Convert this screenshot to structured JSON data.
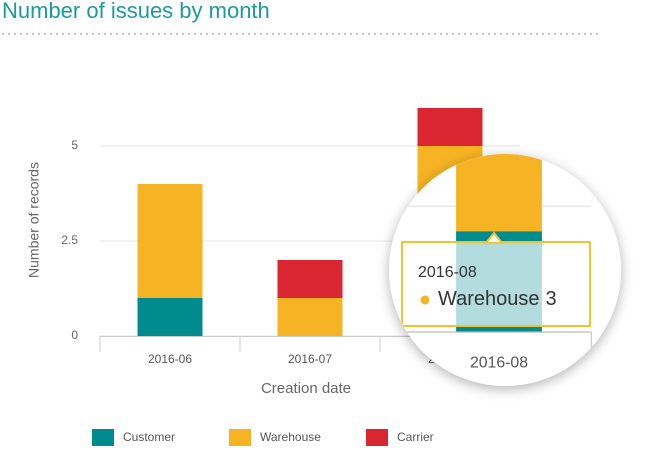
{
  "chart_data": {
    "type": "stacked-bar",
    "title": "Number of issues by month",
    "x_label": "Creation date",
    "y_label": "Number of records",
    "categories": [
      "2016-06",
      "2016-07",
      "2016-08"
    ],
    "series": [
      {
        "name": "Customer",
        "color": "#008b8f",
        "values": [
          1,
          0,
          2
        ]
      },
      {
        "name": "Warehouse",
        "color": "#f6b323",
        "values": [
          3,
          1,
          3
        ]
      },
      {
        "name": "Carrier",
        "color": "#da2630",
        "values": [
          0,
          1,
          1
        ]
      }
    ],
    "ylim": [
      0,
      6.5
    ],
    "yticks": [
      0,
      2.5,
      5
    ],
    "grid": true,
    "legend": "bottom",
    "tooltip": {
      "category": 2,
      "series": 1
    }
  }
}
